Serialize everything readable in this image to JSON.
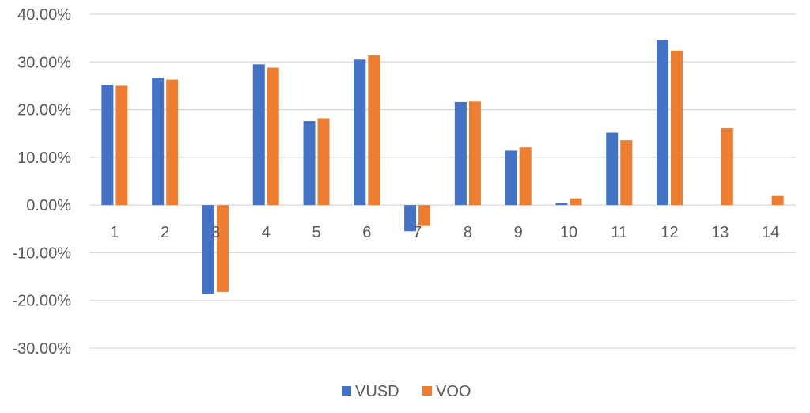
{
  "chart_data": {
    "type": "bar",
    "title": "",
    "xlabel": "",
    "ylabel": "",
    "categories": [
      "1",
      "2",
      "3",
      "4",
      "5",
      "6",
      "7",
      "8",
      "9",
      "10",
      "11",
      "12",
      "13",
      "14"
    ],
    "series": [
      {
        "name": "VUSD",
        "color": "#4472C4",
        "values": [
          25.2,
          26.7,
          -18.6,
          29.5,
          17.6,
          30.5,
          -5.5,
          21.6,
          11.4,
          0.4,
          15.2,
          34.6,
          null,
          null
        ]
      },
      {
        "name": "VOO",
        "color": "#ED7D31",
        "values": [
          25.0,
          26.3,
          -18.2,
          28.8,
          18.2,
          31.4,
          -4.4,
          21.7,
          12.1,
          1.4,
          13.6,
          32.4,
          16.1,
          1.9
        ]
      }
    ],
    "ylim": [
      -30,
      40
    ],
    "yticks": [
      40,
      30,
      20,
      10,
      0,
      -10,
      -20,
      -30
    ],
    "ytick_labels": [
      "40.00%",
      "30.00%",
      "20.00%",
      "10.00%",
      "0.00%",
      "-10.00%",
      "-20.00%",
      "-30.00%"
    ],
    "grid": true,
    "legend_position": "bottom",
    "gridline_color": "#d9d9d9"
  }
}
